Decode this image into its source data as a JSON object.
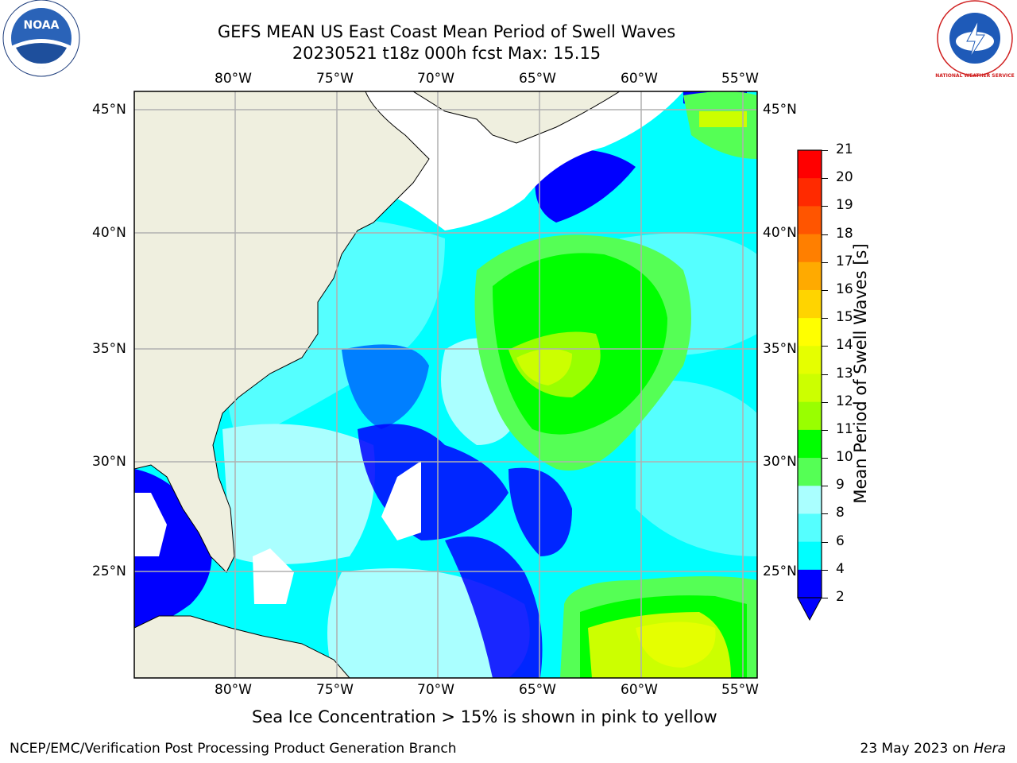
{
  "header": {
    "title_line1": "GEFS MEAN US East Coast Mean Period of Swell Waves",
    "title_line2": "20230521 t18z 000h fcst   Max: 15.15"
  },
  "logos": {
    "left": "NOAA",
    "right_text": "NATIONAL WEATHER SERVICE"
  },
  "map": {
    "lon_labels": [
      "80°W",
      "75°W",
      "70°W",
      "65°W",
      "60°W",
      "55°W"
    ],
    "lat_labels": [
      "45°N",
      "40°N",
      "35°N",
      "30°N",
      "25°N"
    ],
    "colors": {
      "land": "#efefdf",
      "ocean_base": "#00ffff",
      "grid": "#b0b0b0"
    }
  },
  "colorbar": {
    "title": "Mean Period of Swell Waves [s]",
    "ticks": [
      "21",
      "20",
      "19",
      "18",
      "17",
      "16",
      "15",
      "14",
      "13",
      "12",
      "11",
      "10",
      "9",
      "8",
      "6",
      "4",
      "2"
    ],
    "colors_top_to_bottom": [
      "#ff0000",
      "#ff2a00",
      "#ff5500",
      "#ff7f00",
      "#ffaa00",
      "#ffd400",
      "#ffff00",
      "#e5ff00",
      "#ccff00",
      "#99ff00",
      "#00ff00",
      "#55ff55",
      "#aaffff",
      "#55ffff",
      "#00ffff",
      "#0000ff"
    ]
  },
  "note": "Sea Ice Concentration > 15% is shown in pink to yellow",
  "footer": {
    "left": "NCEP/EMC/Verification Post Processing Product Generation Branch",
    "right_date": "23 May 2023 on ",
    "right_machine": "Hera"
  }
}
